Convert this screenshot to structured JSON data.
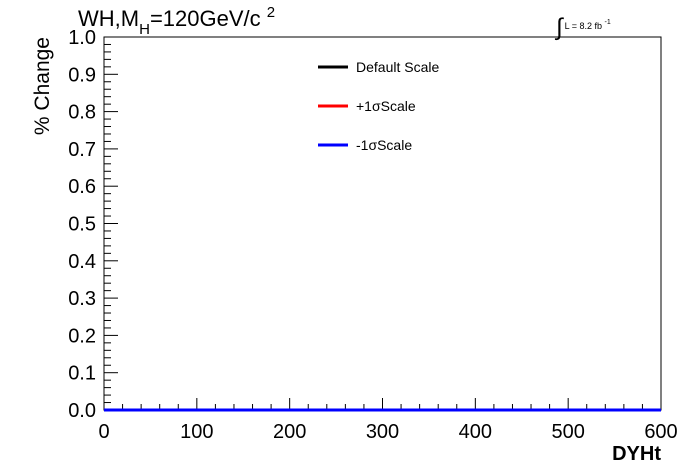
{
  "title": {
    "base": "WH,M",
    "subscript": "H",
    "value": "=120GeV/c",
    "superscript": "2"
  },
  "luminosity": {
    "integral_symbol": "∫",
    "text": "L = 8.2 fb",
    "superscript": "-1"
  },
  "chart_data": {
    "type": "line",
    "xlabel": "DYHt",
    "ylabel": "% Change",
    "xlim": [
      0,
      600
    ],
    "ylim": [
      0,
      1.0
    ],
    "x_ticks": [
      0,
      100,
      200,
      300,
      400,
      500,
      600
    ],
    "x_tick_labels": [
      "0",
      "100",
      "200",
      "300",
      "400",
      "500",
      "600"
    ],
    "y_ticks": [
      0,
      0.1,
      0.2,
      0.3,
      0.4,
      0.5,
      0.6,
      0.7,
      0.8,
      0.9,
      1.0
    ],
    "y_tick_labels": [
      "0.0",
      "0.1",
      "0.2",
      "0.3",
      "0.4",
      "0.5",
      "0.6",
      "0.7",
      "0.8",
      "0.9",
      "1.0"
    ],
    "grid": false,
    "legend_position": "top-center",
    "series": [
      {
        "name": "Default Scale",
        "color": "#000000",
        "x": [
          0,
          600
        ],
        "y": [
          0,
          0
        ]
      },
      {
        "name": "+1σScale",
        "color": "#ff0000",
        "x": [
          0,
          600
        ],
        "y": [
          0,
          0
        ]
      },
      {
        "name": "-1σScale",
        "color": "#0000ff",
        "x": [
          0,
          600
        ],
        "y": [
          0,
          0
        ]
      }
    ]
  }
}
